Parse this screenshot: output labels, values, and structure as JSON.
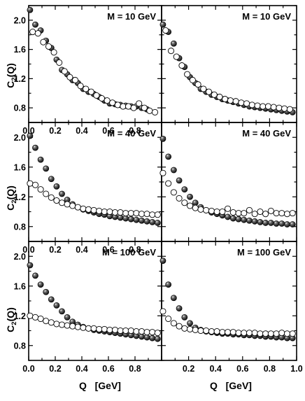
{
  "figure": {
    "ylabel": {
      "main": "C",
      "sub": "2",
      "rest": "(Q)"
    },
    "xlabel": "Q   [GeV]",
    "colors": {
      "filled": "#111111",
      "open": "#ffffff",
      "frame": "#000000"
    }
  },
  "chart_data": [
    {
      "type": "scatter",
      "row": 0,
      "col": 0,
      "label": "M = 10 GeV",
      "xlim": [
        0.0,
        1.0
      ],
      "ylim": [
        0.6,
        2.2
      ],
      "yticks": [
        0.8,
        1.2,
        1.6,
        2.0
      ],
      "xticks": [
        0.0,
        0.2,
        0.4,
        0.6,
        0.8
      ],
      "series": [
        {
          "marker": "filled",
          "x": [
            0.01,
            0.05,
            0.09,
            0.13,
            0.17,
            0.21,
            0.25,
            0.29,
            0.33,
            0.37,
            0.41,
            0.45,
            0.49,
            0.53,
            0.57,
            0.61,
            0.65,
            0.69,
            0.73,
            0.77,
            0.81,
            0.85,
            0.89
          ],
          "y": [
            2.14,
            1.94,
            1.86,
            1.72,
            1.62,
            1.46,
            1.32,
            1.26,
            1.18,
            1.14,
            1.06,
            1.02,
            0.99,
            0.95,
            0.9,
            0.86,
            0.85,
            0.84,
            0.83,
            0.82,
            0.82,
            0.8,
            0.78
          ]
        },
        {
          "marker": "open",
          "x": [
            0.03,
            0.07,
            0.11,
            0.15,
            0.19,
            0.23,
            0.27,
            0.31,
            0.35,
            0.39,
            0.43,
            0.47,
            0.51,
            0.55,
            0.59,
            0.63,
            0.67,
            0.71,
            0.75,
            0.79,
            0.83,
            0.87,
            0.91,
            0.95
          ],
          "y": [
            1.84,
            1.82,
            1.7,
            1.64,
            1.56,
            1.42,
            1.3,
            1.22,
            1.18,
            1.1,
            1.06,
            1.02,
            0.97,
            0.93,
            0.9,
            0.87,
            0.84,
            0.82,
            0.82,
            0.8,
            0.86,
            0.8,
            0.76,
            0.74
          ]
        }
      ]
    },
    {
      "type": "scatter",
      "row": 0,
      "col": 1,
      "label": "M = 10 GeV",
      "xlim": [
        0.0,
        1.0
      ],
      "ylim": [
        0.6,
        2.2
      ],
      "yticks": [],
      "xticks": [],
      "series": [
        {
          "marker": "filled",
          "x": [
            0.01,
            0.05,
            0.09,
            0.13,
            0.17,
            0.21,
            0.25,
            0.29,
            0.33,
            0.37,
            0.41,
            0.45,
            0.49,
            0.53,
            0.57,
            0.61,
            0.65,
            0.69,
            0.73,
            0.77,
            0.81,
            0.85,
            0.89,
            0.93,
            0.97
          ],
          "y": [
            1.94,
            1.84,
            1.68,
            1.48,
            1.36,
            1.22,
            1.14,
            1.06,
            1.02,
            0.98,
            0.95,
            0.92,
            0.9,
            0.88,
            0.86,
            0.84,
            0.82,
            0.81,
            0.8,
            0.79,
            0.78,
            0.77,
            0.76,
            0.75,
            0.74
          ]
        },
        {
          "marker": "open",
          "x": [
            0.03,
            0.07,
            0.11,
            0.15,
            0.19,
            0.23,
            0.27,
            0.31,
            0.35,
            0.39,
            0.43,
            0.47,
            0.51,
            0.55,
            0.59,
            0.63,
            0.67,
            0.71,
            0.75,
            0.79,
            0.83,
            0.87,
            0.91,
            0.95
          ],
          "y": [
            1.86,
            1.58,
            1.5,
            1.38,
            1.26,
            1.18,
            1.12,
            1.06,
            1.02,
            0.98,
            0.95,
            0.92,
            0.9,
            0.89,
            0.87,
            0.86,
            0.84,
            0.83,
            0.82,
            0.82,
            0.81,
            0.8,
            0.79,
            0.78
          ]
        }
      ]
    },
    {
      "type": "scatter",
      "row": 1,
      "col": 0,
      "label": "M = 40 GeV",
      "xlim": [
        0.0,
        1.0
      ],
      "ylim": [
        0.6,
        2.2
      ],
      "yticks": [
        0.8,
        1.2,
        1.6,
        2.0
      ],
      "xticks": [
        0.0,
        0.2,
        0.4,
        0.6,
        0.8
      ],
      "series": [
        {
          "marker": "filled",
          "x": [
            0.01,
            0.05,
            0.09,
            0.13,
            0.17,
            0.21,
            0.25,
            0.29,
            0.33,
            0.37,
            0.41,
            0.45,
            0.49,
            0.53,
            0.57,
            0.61,
            0.65,
            0.69,
            0.73,
            0.77,
            0.81,
            0.85,
            0.89,
            0.93,
            0.97
          ],
          "y": [
            2.02,
            1.86,
            1.7,
            1.58,
            1.44,
            1.34,
            1.24,
            1.16,
            1.1,
            1.06,
            1.03,
            1.01,
            0.99,
            0.97,
            0.96,
            0.94,
            0.93,
            0.92,
            0.91,
            0.9,
            0.89,
            0.88,
            0.87,
            0.86,
            0.85
          ]
        },
        {
          "marker": "open",
          "x": [
            0.01,
            0.05,
            0.09,
            0.13,
            0.17,
            0.21,
            0.25,
            0.29,
            0.33,
            0.37,
            0.41,
            0.45,
            0.49,
            0.53,
            0.57,
            0.61,
            0.65,
            0.69,
            0.73,
            0.77,
            0.81,
            0.85,
            0.89,
            0.93,
            0.97
          ],
          "y": [
            1.38,
            1.36,
            1.3,
            1.24,
            1.19,
            1.15,
            1.12,
            1.1,
            1.08,
            1.06,
            1.04,
            1.03,
            1.02,
            1.01,
            1.0,
            1.0,
            0.99,
            0.99,
            0.98,
            0.98,
            0.98,
            0.97,
            0.97,
            0.96,
            0.96
          ]
        }
      ]
    },
    {
      "type": "scatter",
      "row": 1,
      "col": 1,
      "label": "M = 40 GeV",
      "xlim": [
        0.0,
        1.0
      ],
      "ylim": [
        0.6,
        2.2
      ],
      "yticks": [],
      "xticks": [],
      "series": [
        {
          "marker": "filled",
          "x": [
            0.01,
            0.05,
            0.09,
            0.13,
            0.17,
            0.21,
            0.25,
            0.29,
            0.33,
            0.37,
            0.41,
            0.45,
            0.49,
            0.53,
            0.57,
            0.61,
            0.65,
            0.69,
            0.73,
            0.77,
            0.81,
            0.85,
            0.89,
            0.93,
            0.97
          ],
          "y": [
            1.98,
            1.74,
            1.56,
            1.42,
            1.3,
            1.2,
            1.12,
            1.06,
            1.02,
            0.99,
            0.97,
            0.95,
            0.93,
            0.91,
            0.9,
            0.89,
            0.88,
            0.87,
            0.86,
            0.85,
            0.85,
            0.84,
            0.84,
            0.83,
            0.83
          ]
        },
        {
          "marker": "open",
          "x": [
            0.01,
            0.05,
            0.09,
            0.13,
            0.17,
            0.21,
            0.25,
            0.29,
            0.33,
            0.37,
            0.41,
            0.45,
            0.49,
            0.53,
            0.57,
            0.61,
            0.65,
            0.69,
            0.73,
            0.77,
            0.81,
            0.85,
            0.89,
            0.93,
            0.97
          ],
          "y": [
            1.52,
            1.38,
            1.26,
            1.18,
            1.12,
            1.08,
            1.05,
            1.03,
            1.02,
            1.01,
            1.0,
            1.0,
            1.04,
            0.99,
            0.98,
            0.98,
            1.02,
            0.97,
            1.0,
            0.97,
            1.01,
            0.98,
            0.98,
            0.97,
            0.98
          ]
        }
      ]
    },
    {
      "type": "scatter",
      "row": 2,
      "col": 0,
      "label": "M = 100 GeV",
      "xlim": [
        0.0,
        1.0
      ],
      "ylim": [
        0.6,
        2.2
      ],
      "yticks": [
        0.8,
        1.2,
        1.6,
        2.0
      ],
      "xticks": [
        0.0,
        0.2,
        0.4,
        0.6,
        0.8
      ],
      "series": [
        {
          "marker": "filled",
          "x": [
            0.01,
            0.05,
            0.09,
            0.13,
            0.17,
            0.21,
            0.25,
            0.29,
            0.33,
            0.37,
            0.41,
            0.45,
            0.49,
            0.53,
            0.57,
            0.61,
            0.65,
            0.69,
            0.73,
            0.77,
            0.81,
            0.85,
            0.89,
            0.93,
            0.97
          ],
          "y": [
            1.88,
            1.74,
            1.62,
            1.52,
            1.42,
            1.34,
            1.26,
            1.18,
            1.12,
            1.08,
            1.05,
            1.03,
            1.01,
            1.0,
            0.99,
            0.98,
            0.97,
            0.96,
            0.95,
            0.94,
            0.93,
            0.92,
            0.91,
            0.9,
            0.89
          ]
        },
        {
          "marker": "open",
          "x": [
            0.01,
            0.05,
            0.09,
            0.13,
            0.17,
            0.21,
            0.25,
            0.29,
            0.33,
            0.37,
            0.41,
            0.45,
            0.49,
            0.53,
            0.57,
            0.61,
            0.65,
            0.69,
            0.73,
            0.77,
            0.81,
            0.85,
            0.89,
            0.93,
            0.97
          ],
          "y": [
            1.2,
            1.18,
            1.16,
            1.13,
            1.11,
            1.09,
            1.08,
            1.07,
            1.06,
            1.05,
            1.04,
            1.03,
            1.03,
            1.02,
            1.02,
            1.01,
            1.01,
            1.0,
            1.0,
            1.0,
            0.99,
            0.99,
            0.98,
            0.98,
            0.97
          ]
        }
      ]
    },
    {
      "type": "scatter",
      "row": 2,
      "col": 1,
      "label": "M = 100 GeV",
      "xlim": [
        0.0,
        1.0
      ],
      "ylim": [
        0.6,
        2.2
      ],
      "yticks": [],
      "xticks": [
        0.0,
        0.2,
        0.4,
        0.6,
        0.8,
        1.0
      ],
      "series": [
        {
          "marker": "filled",
          "x": [
            0.01,
            0.05,
            0.09,
            0.13,
            0.17,
            0.21,
            0.25,
            0.29,
            0.33,
            0.37,
            0.41,
            0.45,
            0.49,
            0.53,
            0.57,
            0.61,
            0.65,
            0.69,
            0.73,
            0.77,
            0.81,
            0.85,
            0.89,
            0.93,
            0.97
          ],
          "y": [
            1.94,
            1.62,
            1.44,
            1.3,
            1.18,
            1.1,
            1.04,
            1.01,
            0.99,
            0.98,
            0.97,
            0.96,
            0.96,
            0.95,
            0.95,
            0.94,
            0.94,
            0.93,
            0.93,
            0.92,
            0.92,
            0.91,
            0.91,
            0.9,
            0.9
          ]
        },
        {
          "marker": "open",
          "x": [
            0.01,
            0.05,
            0.09,
            0.13,
            0.17,
            0.21,
            0.25,
            0.29,
            0.33,
            0.37,
            0.41,
            0.45,
            0.49,
            0.53,
            0.57,
            0.61,
            0.65,
            0.69,
            0.73,
            0.77,
            0.81,
            0.85,
            0.89,
            0.93,
            0.97
          ],
          "y": [
            1.26,
            1.16,
            1.1,
            1.06,
            1.03,
            1.02,
            1.01,
            1.0,
            1.0,
            0.99,
            0.99,
            0.98,
            0.98,
            0.98,
            0.97,
            0.97,
            0.97,
            0.97,
            0.96,
            0.96,
            0.96,
            0.96,
            0.97,
            0.96,
            0.96
          ]
        }
      ]
    }
  ]
}
